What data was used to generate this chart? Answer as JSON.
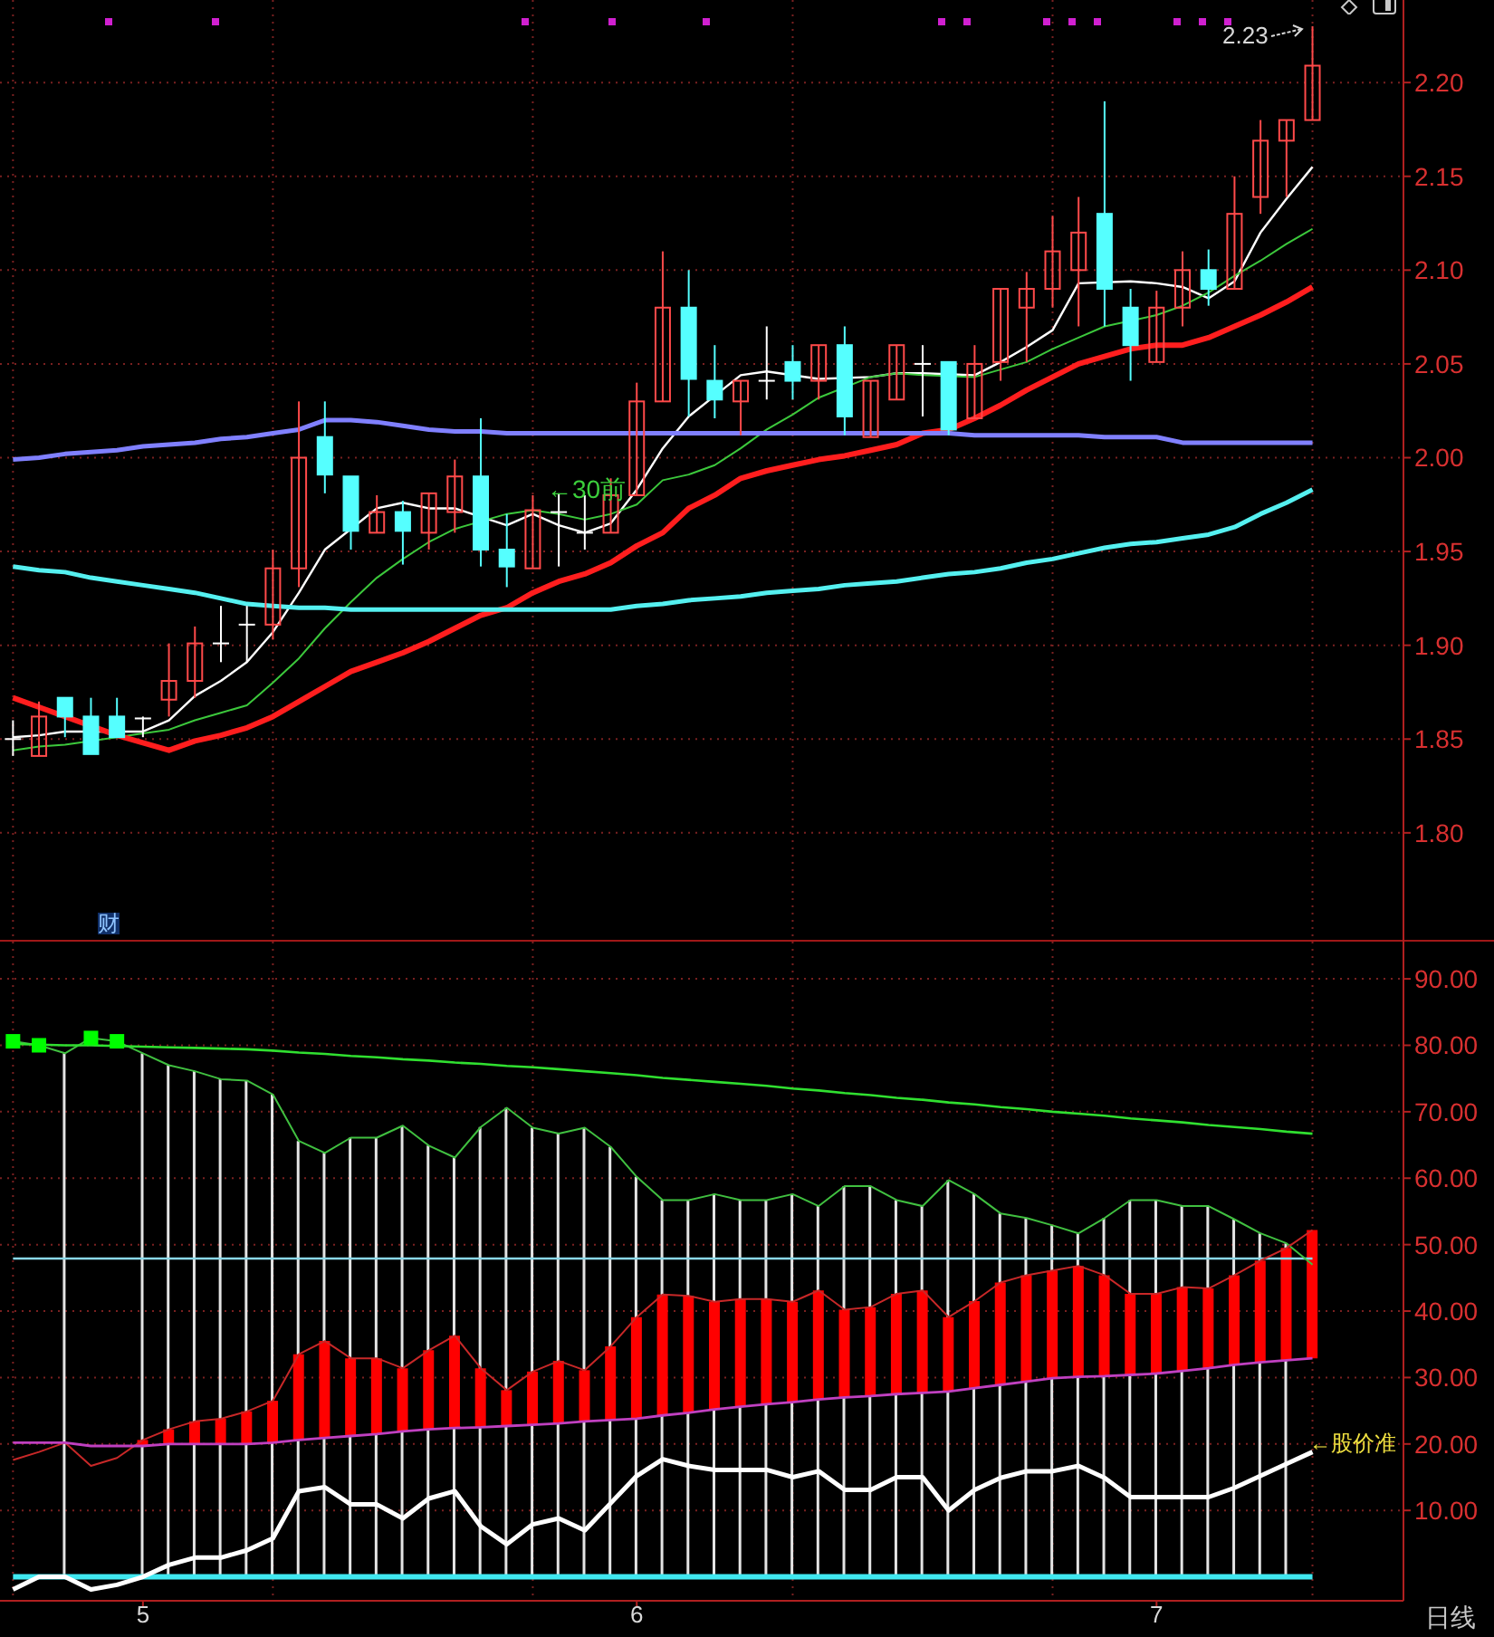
{
  "chart_data": [
    {
      "type": "candlestick",
      "categories": [
        null,
        null,
        null,
        null,
        null,
        "5",
        null,
        null,
        null,
        null,
        null,
        null,
        null,
        null,
        null,
        null,
        null,
        null,
        null,
        null,
        null,
        null,
        null,
        null,
        "6",
        null,
        null,
        null,
        null,
        null,
        null,
        null,
        null,
        null,
        null,
        null,
        null,
        null,
        null,
        null,
        null,
        null,
        null,
        null,
        "7",
        null,
        null,
        null,
        null,
        null,
        null
      ],
      "ohlc": [
        [
          1.85,
          1.86,
          1.841,
          1.85
        ],
        [
          1.841,
          1.87,
          1.841,
          1.862
        ],
        [
          1.872,
          1.872,
          1.851,
          1.862
        ],
        [
          1.862,
          1.872,
          1.842,
          1.842
        ],
        [
          1.862,
          1.872,
          1.851,
          1.851
        ],
        [
          1.861,
          1.862,
          1.851,
          1.861
        ],
        [
          1.871,
          1.901,
          1.862,
          1.881
        ],
        [
          1.881,
          1.91,
          1.872,
          1.901
        ],
        [
          1.901,
          1.921,
          1.891,
          1.901
        ],
        [
          1.911,
          1.921,
          1.891,
          1.911
        ],
        [
          1.911,
          1.951,
          1.903,
          1.941
        ],
        [
          1.941,
          2.03,
          1.931,
          2.0
        ],
        [
          2.011,
          2.03,
          1.981,
          1.991
        ],
        [
          1.99,
          1.99,
          1.951,
          1.961
        ],
        [
          1.96,
          1.98,
          1.96,
          1.971
        ],
        [
          1.971,
          1.977,
          1.943,
          1.961
        ],
        [
          1.96,
          1.981,
          1.951,
          1.981
        ],
        [
          1.971,
          1.999,
          1.96,
          1.99
        ],
        [
          1.99,
          2.021,
          1.942,
          1.951
        ],
        [
          1.951,
          1.97,
          1.931,
          1.942
        ],
        [
          1.941,
          1.98,
          1.941,
          1.972
        ],
        [
          1.971,
          1.981,
          1.942,
          1.971
        ],
        [
          1.96,
          1.98,
          1.951,
          1.96
        ],
        [
          1.96,
          1.989,
          1.96,
          1.98
        ],
        [
          1.98,
          2.04,
          1.98,
          2.03
        ],
        [
          2.03,
          2.11,
          2.03,
          2.08
        ],
        [
          2.08,
          2.1,
          2.022,
          2.042
        ],
        [
          2.041,
          2.06,
          2.021,
          2.031
        ],
        [
          2.03,
          2.041,
          2.012,
          2.041
        ],
        [
          2.041,
          2.07,
          2.031,
          2.041
        ],
        [
          2.051,
          2.06,
          2.031,
          2.041
        ],
        [
          2.041,
          2.06,
          2.031,
          2.06
        ],
        [
          2.06,
          2.07,
          2.012,
          2.022
        ],
        [
          2.011,
          2.041,
          2.011,
          2.041
        ],
        [
          2.031,
          2.06,
          2.031,
          2.06
        ],
        [
          2.05,
          2.06,
          2.022,
          2.05
        ],
        [
          2.051,
          2.051,
          2.012,
          2.015
        ],
        [
          2.021,
          2.06,
          2.021,
          2.05
        ],
        [
          2.051,
          2.09,
          2.041,
          2.09
        ],
        [
          2.08,
          2.099,
          2.051,
          2.09
        ],
        [
          2.09,
          2.129,
          2.08,
          2.11
        ],
        [
          2.1,
          2.139,
          2.07,
          2.12
        ],
        [
          2.13,
          2.19,
          2.07,
          2.09
        ],
        [
          2.08,
          2.09,
          2.041,
          2.06
        ],
        [
          2.051,
          2.089,
          2.051,
          2.08
        ],
        [
          2.08,
          2.11,
          2.07,
          2.1
        ],
        [
          2.1,
          2.111,
          2.081,
          2.09
        ],
        [
          2.09,
          2.15,
          2.09,
          2.13
        ],
        [
          2.139,
          2.18,
          2.13,
          2.169
        ],
        [
          2.169,
          2.18,
          2.139,
          2.18
        ],
        [
          2.18,
          2.23,
          2.18,
          2.209
        ]
      ],
      "colors": [
        "#ffffff",
        "#ff4a4a",
        "#55ffff",
        "#55ffff",
        "#55ffff",
        "#ffffff",
        "#ff4a4a",
        "#ff4a4a",
        "#ffffff",
        "#ffffff",
        "#ff4a4a",
        "#ff4a4a",
        "#55ffff",
        "#55ffff",
        "#ff4a4a",
        "#55ffff",
        "#ff4a4a",
        "#ff4a4a",
        "#55ffff",
        "#55ffff",
        "#ff4a4a",
        "#ffffff",
        "#ffffff",
        "#ff4a4a",
        "#ff4a4a",
        "#ff4a4a",
        "#55ffff",
        "#55ffff",
        "#ff4a4a",
        "#ffffff",
        "#55ffff",
        "#ff4a4a",
        "#55ffff",
        "#ff4a4a",
        "#ff4a4a",
        "#ffffff",
        "#55ffff",
        "#ff4a4a",
        "#ff4a4a",
        "#ff4a4a",
        "#ff4a4a",
        "#ff4a4a",
        "#55ffff",
        "#55ffff",
        "#ff4a4a",
        "#ff4a4a",
        "#55ffff",
        "#ff4a4a",
        "#ff4a4a",
        "#ff4a4a",
        "#ff4a4a"
      ],
      "series": [
        {
          "type": "line",
          "color": "#ffffff",
          "values": [
            1.851,
            1.852,
            1.854,
            null,
            null,
            1.854,
            1.86,
            1.873,
            1.881,
            1.891,
            1.907,
            1.928,
            1.951,
            1.962,
            1.973,
            1.976,
            1.973,
            1.973,
            null,
            1.964,
            1.97,
            1.964,
            1.96,
            1.965,
            1.983,
            2.005,
            2.022,
            2.033,
            2.044,
            2.046,
            null,
            2.042,
            null,
            2.043,
            2.045,
            2.045,
            null,
            2.044,
            2.051,
            2.059,
            2.068,
            2.093,
            null,
            2.094,
            2.093,
            2.091,
            2.085,
            2.094,
            2.12,
            2.138,
            2.155
          ]
        },
        {
          "type": "line",
          "color": "#3cc83c",
          "values": [
            1.844,
            1.846,
            1.847,
            null,
            1.851,
            1.853,
            1.855,
            1.86,
            1.864,
            1.868,
            1.88,
            1.893,
            1.909,
            1.923,
            1.936,
            1.946,
            1.955,
            1.962,
            null,
            1.97,
            1.972,
            1.97,
            1.967,
            1.97,
            1.975,
            1.988,
            1.991,
            1.996,
            2.005,
            2.015,
            2.023,
            2.032,
            null,
            2.043,
            2.045,
            2.044,
            null,
            2.043,
            2.047,
            2.051,
            2.058,
            2.064,
            2.07,
            null,
            2.076,
            2.081,
            2.088,
            2.097,
            2.105,
            2.114,
            2.122
          ]
        },
        {
          "type": "line",
          "color": "#ff1e1e",
          "values": [
            1.872,
            1.867,
            1.862,
            null,
            1.852,
            1.848,
            1.844,
            1.849,
            1.852,
            1.856,
            1.862,
            1.87,
            1.878,
            1.886,
            1.891,
            1.896,
            1.902,
            1.909,
            1.916,
            1.92,
            1.928,
            1.934,
            1.938,
            1.944,
            1.953,
            1.96,
            1.973,
            1.98,
            1.989,
            1.993,
            1.996,
            1.999,
            2.001,
            2.004,
            2.007,
            2.013,
            2.015,
            2.021,
            2.028,
            2.036,
            2.043,
            2.05,
            2.054,
            2.058,
            2.06,
            2.06,
            2.064,
            2.07,
            2.076,
            2.083,
            2.091
          ]
        },
        {
          "type": "line",
          "color": "#8080ff",
          "values": [
            1.999,
            2.0,
            2.002,
            2.003,
            2.004,
            2.006,
            2.007,
            2.008,
            2.01,
            2.011,
            2.013,
            2.015,
            2.02,
            2.02,
            2.019,
            2.017,
            2.015,
            2.014,
            2.014,
            2.013,
            2.013,
            2.013,
            2.013,
            2.013,
            2.013,
            2.013,
            2.013,
            2.013,
            2.013,
            2.013,
            2.013,
            2.013,
            2.013,
            2.013,
            2.013,
            2.013,
            2.013,
            2.012,
            2.012,
            2.012,
            2.012,
            2.012,
            2.011,
            2.011,
            2.011,
            2.008,
            2.008,
            2.008,
            2.008,
            2.008,
            2.008
          ]
        },
        {
          "type": "line",
          "color": "#55f0f0",
          "values": [
            1.942,
            1.94,
            1.939,
            1.936,
            1.934,
            1.932,
            1.93,
            1.928,
            1.925,
            1.922,
            1.921,
            1.92,
            1.92,
            1.919,
            1.919,
            1.919,
            1.919,
            1.919,
            1.919,
            1.919,
            1.919,
            1.919,
            1.919,
            1.919,
            1.921,
            1.922,
            1.924,
            1.925,
            1.926,
            1.928,
            1.929,
            1.93,
            1.932,
            1.933,
            1.934,
            1.936,
            1.938,
            1.939,
            1.941,
            1.944,
            1.946,
            1.949,
            1.952,
            1.954,
            1.955,
            1.957,
            1.959,
            1.963,
            1.97,
            1.976,
            1.983
          ]
        }
      ],
      "ylim": [
        1.742,
        2.244
      ],
      "yticks": [
        {
          "value": 1.8,
          "label": "1.80"
        },
        {
          "value": 1.85,
          "label": "1.85"
        },
        {
          "value": 1.9,
          "label": "1.90"
        },
        {
          "value": 1.95,
          "label": "1.95"
        },
        {
          "value": 2.0,
          "label": "2.00"
        },
        {
          "value": 2.05,
          "label": "2.05"
        },
        {
          "value": 2.1,
          "label": "2.10"
        },
        {
          "value": 2.15,
          "label": "2.15"
        },
        {
          "value": 2.2,
          "label": "2.20"
        }
      ],
      "grid": true,
      "tick_labels": "y",
      "annotations": [
        "2.23",
        "←30前",
        "财"
      ]
    },
    {
      "type": "bar",
      "categories": [
        null,
        null,
        null,
        null,
        null,
        "5",
        null,
        null,
        null,
        null,
        null,
        null,
        null,
        null,
        null,
        null,
        null,
        null,
        null,
        null,
        null,
        null,
        null,
        null,
        "6",
        null,
        null,
        null,
        null,
        null,
        null,
        null,
        null,
        null,
        null,
        null,
        null,
        null,
        null,
        null,
        null,
        null,
        null,
        null,
        "7",
        null,
        null,
        null,
        null,
        null,
        null
      ],
      "series": [
        {
          "type": "bar",
          "color": "#e4e4e4",
          "values": [
            null,
            null,
            78.8,
            null,
            null,
            78.8,
            77.0,
            76.1,
            74.9,
            74.7,
            72.6,
            65.6,
            63.8,
            66.1,
            66.1,
            67.9,
            64.9,
            63.1,
            67.7,
            70.6,
            67.6,
            66.7,
            67.6,
            64.7,
            60.2,
            56.7,
            56.7,
            57.6,
            56.7,
            56.7,
            57.6,
            55.8,
            58.8,
            58.8,
            56.7,
            55.8,
            59.7,
            57.6,
            54.7,
            54.0,
            52.9,
            51.7,
            54.0,
            56.7,
            56.7,
            55.8,
            55.8,
            53.8,
            51.7,
            50.2,
            null
          ]
        },
        {
          "type": "line",
          "color": "#40c040",
          "values": [
            80.6,
            80.0,
            78.8,
            81.1,
            80.6,
            78.8,
            77.0,
            76.1,
            74.9,
            74.7,
            72.6,
            65.6,
            63.8,
            66.1,
            66.1,
            67.9,
            64.9,
            63.1,
            67.7,
            70.6,
            67.6,
            66.7,
            67.6,
            64.7,
            60.2,
            56.7,
            56.7,
            57.6,
            56.7,
            56.7,
            57.6,
            55.8,
            58.8,
            58.8,
            56.7,
            55.8,
            59.7,
            57.6,
            54.7,
            54.0,
            52.9,
            51.7,
            54.0,
            56.7,
            56.7,
            55.8,
            55.8,
            53.8,
            51.7,
            50.2,
            47.0
          ]
        },
        {
          "type": "line",
          "color": "#30e030",
          "values": [
            80.2,
            80.1,
            80.0,
            80.0,
            79.9,
            79.8,
            79.7,
            79.6,
            79.5,
            79.4,
            79.2,
            78.9,
            78.7,
            78.4,
            78.2,
            77.9,
            77.7,
            77.4,
            77.2,
            76.9,
            76.7,
            76.4,
            76.1,
            75.8,
            75.5,
            75.1,
            74.8,
            74.5,
            74.2,
            73.9,
            73.5,
            73.2,
            72.8,
            72.5,
            72.1,
            71.8,
            71.4,
            71.1,
            70.7,
            70.4,
            70.0,
            69.7,
            69.4,
            69.0,
            68.7,
            68.4,
            68.0,
            67.7,
            67.4,
            67.0,
            66.7
          ]
        },
        {
          "type": "bar",
          "color": "#ff0000",
          "base": [
            null,
            null,
            null,
            null,
            null,
            19.7,
            20.0,
            20.0,
            20.0,
            20.0,
            20.2,
            20.6,
            20.9,
            21.2,
            21.5,
            21.9,
            22.2,
            22.4,
            22.5,
            22.7,
            22.9,
            23.1,
            23.4,
            23.6,
            23.8,
            24.3,
            24.7,
            25.2,
            25.6,
            26.0,
            26.3,
            26.7,
            27.0,
            27.2,
            27.5,
            27.7,
            27.9,
            28.4,
            28.9,
            29.4,
            29.9,
            30.1,
            30.2,
            30.4,
            30.6,
            31.0,
            31.4,
            31.9,
            32.3,
            32.6,
            32.9
          ],
          "values": [
            null,
            null,
            null,
            null,
            null,
            0.9,
            2.2,
            3.4,
            3.8,
            4.9,
            6.3,
            12.9,
            14.6,
            11.7,
            11.4,
            9.5,
            11.9,
            13.9,
            8.9,
            5.4,
            8.0,
            9.4,
            7.7,
            11.1,
            15.3,
            18.2,
            17.6,
            16.2,
            16.2,
            15.8,
            15.1,
            16.4,
            13.2,
            13.4,
            15.1,
            15.4,
            11.2,
            13.1,
            15.4,
            16.0,
            16.2,
            16.7,
            15.2,
            12.2,
            12.0,
            12.6,
            12.0,
            13.5,
            15.3,
            16.9,
            19.3
          ]
        },
        {
          "type": "line",
          "color": "#c82828",
          "values": [
            17.6,
            18.8,
            20.2,
            16.7,
            17.9,
            20.6,
            22.2,
            23.4,
            23.8,
            24.9,
            26.5,
            33.5,
            35.5,
            32.9,
            32.9,
            31.4,
            34.1,
            36.3,
            31.4,
            28.1,
            30.9,
            32.5,
            31.1,
            34.7,
            39.1,
            42.5,
            42.3,
            41.4,
            41.8,
            41.8,
            41.4,
            43.1,
            40.2,
            40.6,
            42.6,
            43.1,
            39.1,
            41.5,
            44.3,
            45.4,
            46.1,
            46.8,
            45.4,
            42.6,
            42.6,
            43.6,
            43.4,
            45.4,
            47.6,
            49.5,
            52.2
          ]
        },
        {
          "type": "line",
          "color": "#c040c0",
          "values": [
            20.2,
            20.2,
            20.2,
            19.7,
            19.7,
            19.7,
            20.0,
            20.0,
            20.0,
            20.0,
            20.2,
            20.6,
            20.9,
            21.2,
            21.5,
            21.9,
            22.2,
            22.4,
            22.5,
            22.7,
            22.9,
            23.1,
            23.4,
            23.6,
            23.8,
            24.3,
            24.7,
            25.2,
            25.6,
            26.0,
            26.3,
            26.7,
            27.0,
            27.2,
            27.5,
            27.7,
            27.9,
            28.4,
            28.9,
            29.4,
            29.9,
            30.1,
            30.2,
            30.4,
            30.6,
            31.0,
            31.4,
            31.9,
            32.3,
            32.6,
            32.9
          ]
        },
        {
          "type": "line",
          "color": "#ffffff",
          "values": [
            -1.9,
            0,
            0,
            -1.9,
            -1.2,
            0,
            1.8,
            2.9,
            2.9,
            4.0,
            5.8,
            12.9,
            13.5,
            10.9,
            10.9,
            8.8,
            11.8,
            12.9,
            7.6,
            4.9,
            7.9,
            8.8,
            7.0,
            11.1,
            15.2,
            17.7,
            16.7,
            16.1,
            16.1,
            16.1,
            15.0,
            15.9,
            13.1,
            13.1,
            15.0,
            15.0,
            10.0,
            13.1,
            14.9,
            15.9,
            15.9,
            16.7,
            14.9,
            12.0,
            12.0,
            12.0,
            12.0,
            13.4,
            15.2,
            17.0,
            18.8
          ]
        },
        {
          "type": "scatter",
          "color": "#00ff00",
          "marker": "square",
          "values": [
            80.6,
            80.0,
            null,
            81.1,
            80.6,
            null,
            null,
            null,
            null,
            null,
            null,
            null,
            null,
            null,
            null,
            null,
            null,
            null,
            null,
            null,
            null,
            null,
            null,
            null,
            null,
            null,
            null,
            null,
            null,
            null,
            null,
            null,
            null,
            null,
            null,
            null,
            null,
            null,
            null,
            null,
            null,
            null,
            null,
            null,
            null,
            null,
            null,
            null,
            null,
            null,
            null
          ]
        }
      ],
      "ylim": [
        -3.6,
        95.6
      ],
      "yticks": [
        {
          "value": 10,
          "label": "10.00"
        },
        {
          "value": 20,
          "label": "20.00"
        },
        {
          "value": 30,
          "label": "30.00"
        },
        {
          "value": 40,
          "label": "40.00"
        },
        {
          "value": 50,
          "label": "50.00"
        },
        {
          "value": 60,
          "label": "60.00"
        },
        {
          "value": 70,
          "label": "70.00"
        },
        {
          "value": 80,
          "label": "80.00"
        },
        {
          "value": 90,
          "label": "90.00"
        }
      ],
      "ref_lines": [
        {
          "axis": "y",
          "value": 47.9,
          "color": "#8ad8e8"
        },
        {
          "axis": "y",
          "value": 0,
          "color": "#40e8f0"
        }
      ],
      "grid": true,
      "annotations": [
        "←股价准",
        "日线"
      ]
    }
  ]
}
